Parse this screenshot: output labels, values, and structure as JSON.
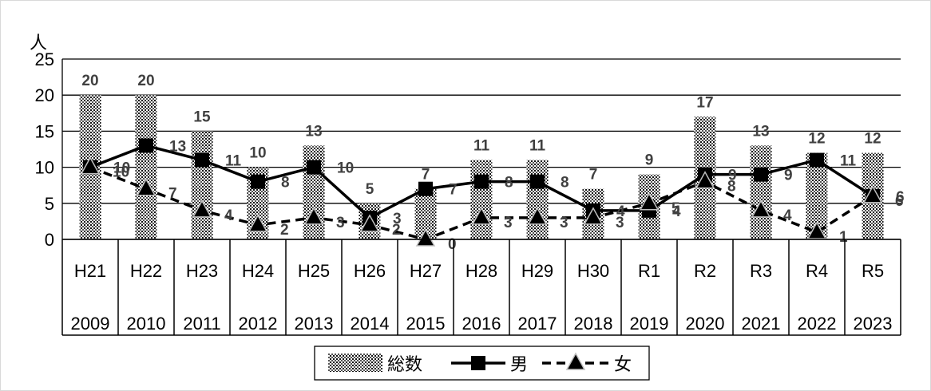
{
  "chart_data": {
    "type": "bar",
    "unit_label": "人",
    "ylim": [
      0,
      25
    ],
    "yticks": [
      "0",
      "5",
      "10",
      "15",
      "20",
      "25"
    ],
    "categories": [
      "H21",
      "H22",
      "H23",
      "H24",
      "H25",
      "H26",
      "H27",
      "H28",
      "H29",
      "H30",
      "R1",
      "R2",
      "R3",
      "R4",
      "R5"
    ],
    "years": [
      "2009",
      "2010",
      "2011",
      "2012",
      "2013",
      "2014",
      "2015",
      "2016",
      "2017",
      "2018",
      "2019",
      "2020",
      "2021",
      "2022",
      "2023"
    ],
    "series": [
      {
        "name": "総数",
        "type": "bar",
        "values": [
          20,
          20,
          15,
          10,
          13,
          5,
          7,
          11,
          11,
          7,
          9,
          17,
          13,
          12,
          12
        ]
      },
      {
        "name": "男",
        "type": "line",
        "style": "solid",
        "marker": "square",
        "values": [
          10,
          13,
          11,
          8,
          10,
          3,
          7,
          8,
          8,
          4,
          4,
          9,
          9,
          11,
          6
        ]
      },
      {
        "name": "女",
        "type": "line",
        "style": "dashed",
        "marker": "triangle",
        "values": [
          10,
          7,
          4,
          2,
          3,
          2,
          0,
          3,
          3,
          3,
          5,
          8,
          4,
          1,
          6
        ]
      }
    ],
    "grid": true,
    "legend_position": "bottom"
  }
}
